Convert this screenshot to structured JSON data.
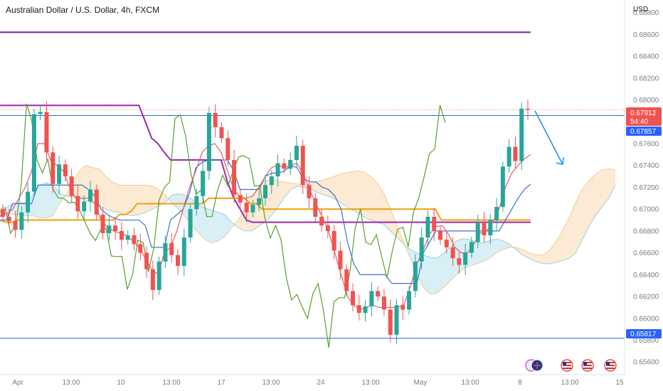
{
  "header": {
    "title": "Australian Dollar / U.S. Dollar, 4h, FXCM",
    "currency": "USD"
  },
  "price_badges": {
    "last_price": "0.67912",
    "countdown": "54:40",
    "level_upper": "0.67857",
    "level_lower": "0.65817"
  },
  "colors": {
    "bull": "#26a69a",
    "bear": "#ef5350",
    "tenkan": "#e35d6a",
    "kijun": "#3b6fd4",
    "chikou": "#5aa02c",
    "orange_line": "#f2a00c",
    "purple_line": "#9c27b0",
    "horizontal_level": "#2962ff",
    "top_line": "#7b1fa2",
    "arrow": "#2196f3",
    "cloud_bull": "#cbeaf2",
    "cloud_bear": "#fbe3c6"
  },
  "chart_data": {
    "type": "candlestick",
    "timeframe": "4h",
    "y_axis": {
      "ticks": [
        "0.68800",
        "0.68600",
        "0.68400",
        "0.68200",
        "0.68000",
        "0.67600",
        "0.67400",
        "0.67200",
        "0.67000",
        "0.66800",
        "0.66600",
        "0.66400",
        "0.66200",
        "0.66000",
        "0.65800",
        "0.65600"
      ],
      "range": [
        0.6553,
        0.6885
      ]
    },
    "x_axis": {
      "ticks": [
        "Apr",
        "13:00",
        "10",
        "13:00",
        "17",
        "13:00",
        "24",
        "13:00",
        "May",
        "13:00",
        "8",
        "13:00",
        "15"
      ]
    },
    "horizontal_levels": [
      0.67857,
      0.65817,
      0.6862
    ],
    "close_path": [
      0.6693,
      0.6689,
      0.6681,
      0.6697,
      0.6716,
      0.6787,
      0.6789,
      0.6752,
      0.6723,
      0.6741,
      0.673,
      0.6712,
      0.6698,
      0.6707,
      0.6718,
      0.6695,
      0.6678,
      0.6685,
      0.668,
      0.6672,
      0.6676,
      0.6668,
      0.666,
      0.6645,
      0.6626,
      0.6652,
      0.6669,
      0.6658,
      0.6648,
      0.6674,
      0.67,
      0.6712,
      0.6735,
      0.6788,
      0.6775,
      0.6765,
      0.6745,
      0.6713,
      0.6706,
      0.6697,
      0.6704,
      0.671,
      0.6722,
      0.673,
      0.6742,
      0.6737,
      0.6745,
      0.6758,
      0.6722,
      0.671,
      0.6693,
      0.6685,
      0.668,
      0.6662,
      0.6645,
      0.6625,
      0.6612,
      0.6605,
      0.6611,
      0.6625,
      0.662,
      0.6608,
      0.6585,
      0.6612,
      0.6608,
      0.6625,
      0.6652,
      0.6674,
      0.6693,
      0.668,
      0.6672,
      0.6665,
      0.6655,
      0.6649,
      0.666,
      0.667,
      0.6688,
      0.6676,
      0.669,
      0.6702,
      0.6739,
      0.6757,
      0.6744,
      0.6792,
      0.6791
    ],
    "open_first": 0.67,
    "cloud": {
      "span_a": [
        0.67,
        0.6702,
        0.6705,
        0.6706,
        0.6706,
        0.6713,
        0.6722,
        0.6724,
        0.6722,
        0.6715,
        0.6712,
        0.6711,
        0.671,
        0.6708,
        0.6706,
        0.6703,
        0.67,
        0.6698,
        0.6697,
        0.6695,
        0.6694,
        0.6695,
        0.6697,
        0.67,
        0.6703,
        0.6706,
        0.6713,
        0.6714,
        0.6713,
        0.6709,
        0.6704,
        0.6701,
        0.6699,
        0.6697,
        0.6695,
        0.6688,
        0.6683,
        0.668,
        0.668,
        0.6684,
        0.6688,
        0.6694,
        0.6702,
        0.6711,
        0.6718,
        0.6721,
        0.672,
        0.6718,
        0.6715,
        0.6713,
        0.6711,
        0.6708,
        0.6704,
        0.67,
        0.6697,
        0.6693,
        0.669,
        0.6688,
        0.6686,
        0.668,
        0.6674,
        0.6668,
        0.6663,
        0.666,
        0.6658,
        0.6656,
        0.6655,
        0.6659,
        0.6665,
        0.6671,
        0.6673,
        0.6672,
        0.667,
        0.6669,
        0.6671,
        0.6673,
        0.6671,
        0.6668,
        0.6663,
        0.6658,
        0.6655,
        0.6652,
        0.665,
        0.665,
        0.6651,
        0.6653,
        0.6655,
        0.666,
        0.6672,
        0.6684,
        0.6694,
        0.6702,
        0.671,
        0.6722
      ],
      "span_b": [
        0.6697,
        0.6697,
        0.6695,
        0.6695,
        0.6694,
        0.6694,
        0.6692,
        0.6692,
        0.6694,
        0.6705,
        0.6713,
        0.6725,
        0.6735,
        0.674,
        0.6738,
        0.6737,
        0.673,
        0.6725,
        0.6722,
        0.6722,
        0.6722,
        0.6722,
        0.6722,
        0.6721,
        0.6718,
        0.6713,
        0.6705,
        0.67,
        0.6693,
        0.6685,
        0.6678,
        0.6672,
        0.6669,
        0.6671,
        0.6675,
        0.6683,
        0.669,
        0.67,
        0.6711,
        0.672,
        0.6726,
        0.6727,
        0.6726,
        0.6725,
        0.6724,
        0.6723,
        0.6722,
        0.6723,
        0.6725,
        0.6727,
        0.6729,
        0.6731,
        0.6733,
        0.6734,
        0.6735,
        0.6734,
        0.673,
        0.6724,
        0.6715,
        0.67,
        0.6685,
        0.667,
        0.6655,
        0.664,
        0.6628,
        0.6622,
        0.6623,
        0.6628,
        0.6634,
        0.664,
        0.6645,
        0.6648,
        0.665,
        0.6652,
        0.6655,
        0.666,
        0.6663,
        0.6665,
        0.6665,
        0.6663,
        0.666,
        0.6658,
        0.6658,
        0.6662,
        0.667,
        0.668,
        0.6692,
        0.6706,
        0.6718,
        0.6726,
        0.6732,
        0.6736,
        0.6737,
        0.6736
      ]
    },
    "kijun": [
      0.669,
      0.669,
      0.6705,
      0.6705,
      0.6705,
      0.6705,
      0.6722,
      0.6722,
      0.6722,
      0.6722,
      0.6722,
      0.6722,
      0.6722,
      0.6722,
      0.6718,
      0.6712,
      0.67,
      0.6695,
      0.6692,
      0.669,
      0.669,
      0.669,
      0.669,
      0.6685,
      0.6665,
      0.6665,
      0.6665,
      0.669,
      0.6695,
      0.67,
      0.6715,
      0.6738,
      0.6743,
      0.6745,
      0.6745,
      0.6745,
      0.6745,
      0.6735,
      0.6718,
      0.6718,
      0.6718,
      0.6718,
      0.673,
      0.6733,
      0.6733,
      0.6735,
      0.674,
      0.6738,
      0.6728,
      0.6725,
      0.6725,
      0.672,
      0.6718,
      0.6712,
      0.67,
      0.667,
      0.665,
      0.664,
      0.664,
      0.664,
      0.664,
      0.664,
      0.6632,
      0.6632,
      0.6632,
      0.6632,
      0.6632,
      0.666,
      0.667,
      0.668,
      0.668,
      0.668,
      0.668,
      0.668,
      0.668,
      0.668,
      0.668,
      0.668,
      0.668,
      0.668,
      0.669,
      0.67,
      0.671,
      0.6718,
      0.6723
    ],
    "tenkan": [
      0.6698,
      0.6695,
      0.67,
      0.671,
      0.672,
      0.6735,
      0.676,
      0.676,
      0.6745,
      0.674,
      0.6735,
      0.672,
      0.671,
      0.671,
      0.671,
      0.6705,
      0.669,
      0.6683,
      0.668,
      0.6678,
      0.6676,
      0.6671,
      0.6665,
      0.6655,
      0.6645,
      0.664,
      0.666,
      0.6665,
      0.668,
      0.67,
      0.672,
      0.6735,
      0.6752,
      0.6758,
      0.676,
      0.6752,
      0.6735,
      0.6718,
      0.6711,
      0.671,
      0.6712,
      0.672,
      0.673,
      0.6738,
      0.674,
      0.6738,
      0.674,
      0.6742,
      0.6732,
      0.6718,
      0.6705,
      0.6693,
      0.668,
      0.666,
      0.664,
      0.662,
      0.6612,
      0.6608,
      0.661,
      0.6612,
      0.661,
      0.661,
      0.661,
      0.661,
      0.6613,
      0.663,
      0.665,
      0.6663,
      0.6677,
      0.6684,
      0.6685,
      0.6677,
      0.6665,
      0.666,
      0.666,
      0.6668,
      0.6678,
      0.668,
      0.6688,
      0.67,
      0.672,
      0.6733,
      0.674,
      0.6746,
      0.675
    ],
    "orange_line": [
      0.669,
      0.6688,
      0.6688,
      0.669,
      0.669,
      0.669,
      0.669,
      0.669,
      0.669,
      0.669,
      0.669,
      0.669,
      0.669,
      0.669,
      0.669,
      0.669,
      0.669,
      0.669,
      0.669,
      0.669,
      0.6695,
      0.6695,
      0.6698,
      0.6705,
      0.6705,
      0.6705,
      0.6705,
      0.6705,
      0.6705,
      0.6705,
      0.6705,
      0.6705,
      0.6705,
      0.6705,
      0.6705,
      0.671,
      0.671,
      0.671,
      0.671,
      0.671,
      0.671,
      0.671,
      0.6705,
      0.6705,
      0.67,
      0.67,
      0.67,
      0.67,
      0.67,
      0.67,
      0.67,
      0.67,
      0.67,
      0.67,
      0.67,
      0.67,
      0.67,
      0.67,
      0.67,
      0.67,
      0.67,
      0.67,
      0.67,
      0.67,
      0.67,
      0.67,
      0.67,
      0.67,
      0.67,
      0.67,
      0.67,
      0.67,
      0.67,
      0.67,
      0.669,
      0.669,
      0.669,
      0.669,
      0.669,
      0.669,
      0.669,
      0.669,
      0.669,
      0.669,
      0.669,
      0.669,
      0.669,
      0.669,
      0.669,
      0.669
    ],
    "purple_line": [
      0.6795,
      0.6795,
      0.6795,
      0.6795,
      0.6795,
      0.6795,
      0.6795,
      0.6795,
      0.6795,
      0.6795,
      0.6795,
      0.6795,
      0.6795,
      0.6795,
      0.6795,
      0.6795,
      0.6795,
      0.6795,
      0.6795,
      0.6795,
      0.6795,
      0.6795,
      0.6795,
      0.678,
      0.6765,
      0.676,
      0.6752,
      0.6745,
      0.6745,
      0.6745,
      0.6745,
      0.6745,
      0.6745,
      0.6745,
      0.6745,
      0.6745,
      0.6725,
      0.671,
      0.67,
      0.669,
      0.6688,
      0.6688,
      0.6688,
      0.6688,
      0.6688,
      0.6688,
      0.6688,
      0.6688,
      0.6688,
      0.6688,
      0.6688,
      0.6688,
      0.6688,
      0.6688,
      0.6688,
      0.6688,
      0.6688,
      0.6688,
      0.6688,
      0.6688,
      0.6688,
      0.6688,
      0.6688,
      0.6688,
      0.6688,
      0.6688,
      0.6688,
      0.6688,
      0.6688,
      0.6688,
      0.6688,
      0.6688,
      0.6688,
      0.6688,
      0.6688,
      0.6688,
      0.6688,
      0.6688,
      0.6688,
      0.6688,
      0.6688,
      0.6688,
      0.6688,
      0.6688,
      0.6688
    ],
    "projection_arrow": {
      "from": 0.679,
      "to": 0.6741
    }
  }
}
